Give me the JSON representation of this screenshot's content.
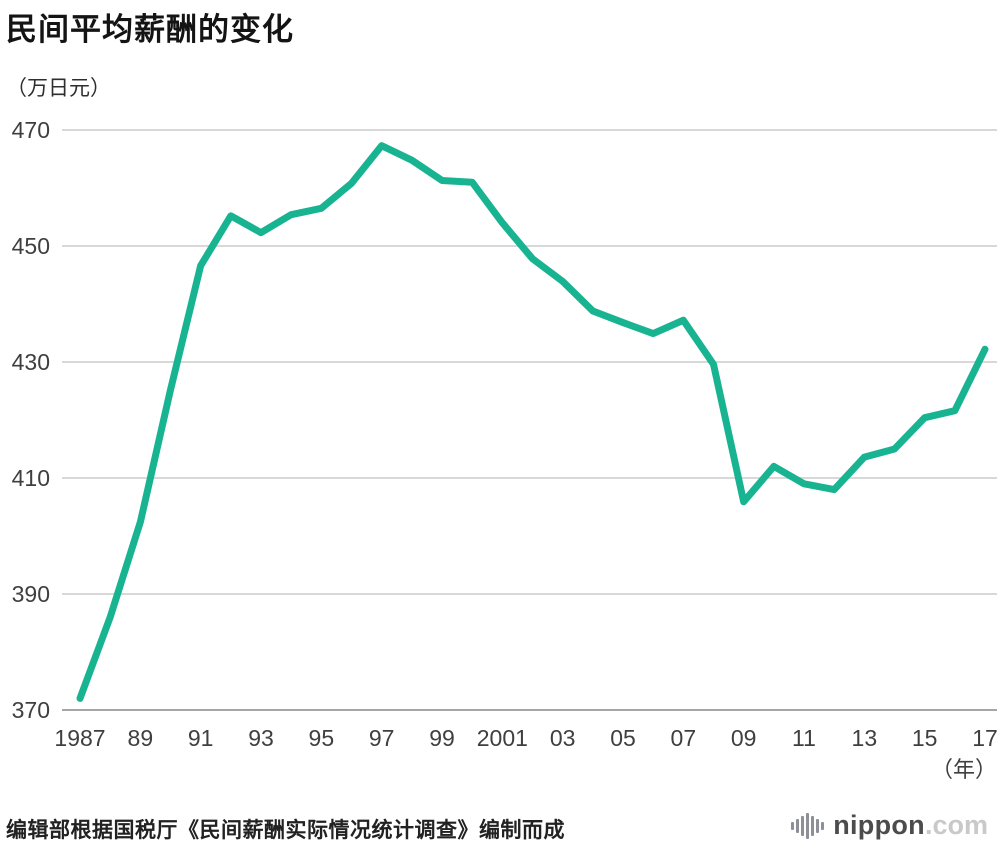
{
  "page": {
    "title": "民间平均薪酬的变化",
    "unit_label": "（万日元）",
    "source_note": "编辑部根据国税厅《民间薪酬实际情况统计调查》编制而成",
    "logo": {
      "name": "nippon",
      "tld": ".com",
      "icon": "equalizer-bars-icon"
    }
  },
  "chart_data": {
    "type": "line",
    "title": "民间平均薪酬的变化",
    "ylabel": "（万日元）",
    "x_unit": "（年）",
    "x": [
      1987,
      1988,
      1989,
      1990,
      1991,
      1992,
      1993,
      1994,
      1995,
      1996,
      1997,
      1998,
      1999,
      2000,
      2001,
      2002,
      2003,
      2004,
      2005,
      2006,
      2007,
      2008,
      2009,
      2010,
      2011,
      2012,
      2013,
      2014,
      2015,
      2016,
      2017
    ],
    "values": [
      372.0,
      386.0,
      402.4,
      425.2,
      446.6,
      455.2,
      452.3,
      455.4,
      456.5,
      460.8,
      467.3,
      464.8,
      461.3,
      461.0,
      454.0,
      447.8,
      443.9,
      438.8,
      436.8,
      434.9,
      437.2,
      429.6,
      405.9,
      412.0,
      409.0,
      408.0,
      413.6,
      415.0,
      420.4,
      421.6,
      432.2
    ],
    "yticks": [
      370,
      390,
      410,
      430,
      450,
      470
    ],
    "xtick_positions": [
      1987,
      1989,
      1991,
      1993,
      1995,
      1997,
      1999,
      2001,
      2003,
      2005,
      2007,
      2009,
      2011,
      2013,
      2015,
      2017
    ],
    "xtick_labels": [
      "1987",
      "89",
      "91",
      "93",
      "95",
      "97",
      "99",
      "2001",
      "03",
      "05",
      "07",
      "09",
      "11",
      "13",
      "15",
      "17"
    ],
    "ylim": [
      370,
      470
    ],
    "grid": true,
    "legend": "none",
    "line_color": "#18b491"
  }
}
